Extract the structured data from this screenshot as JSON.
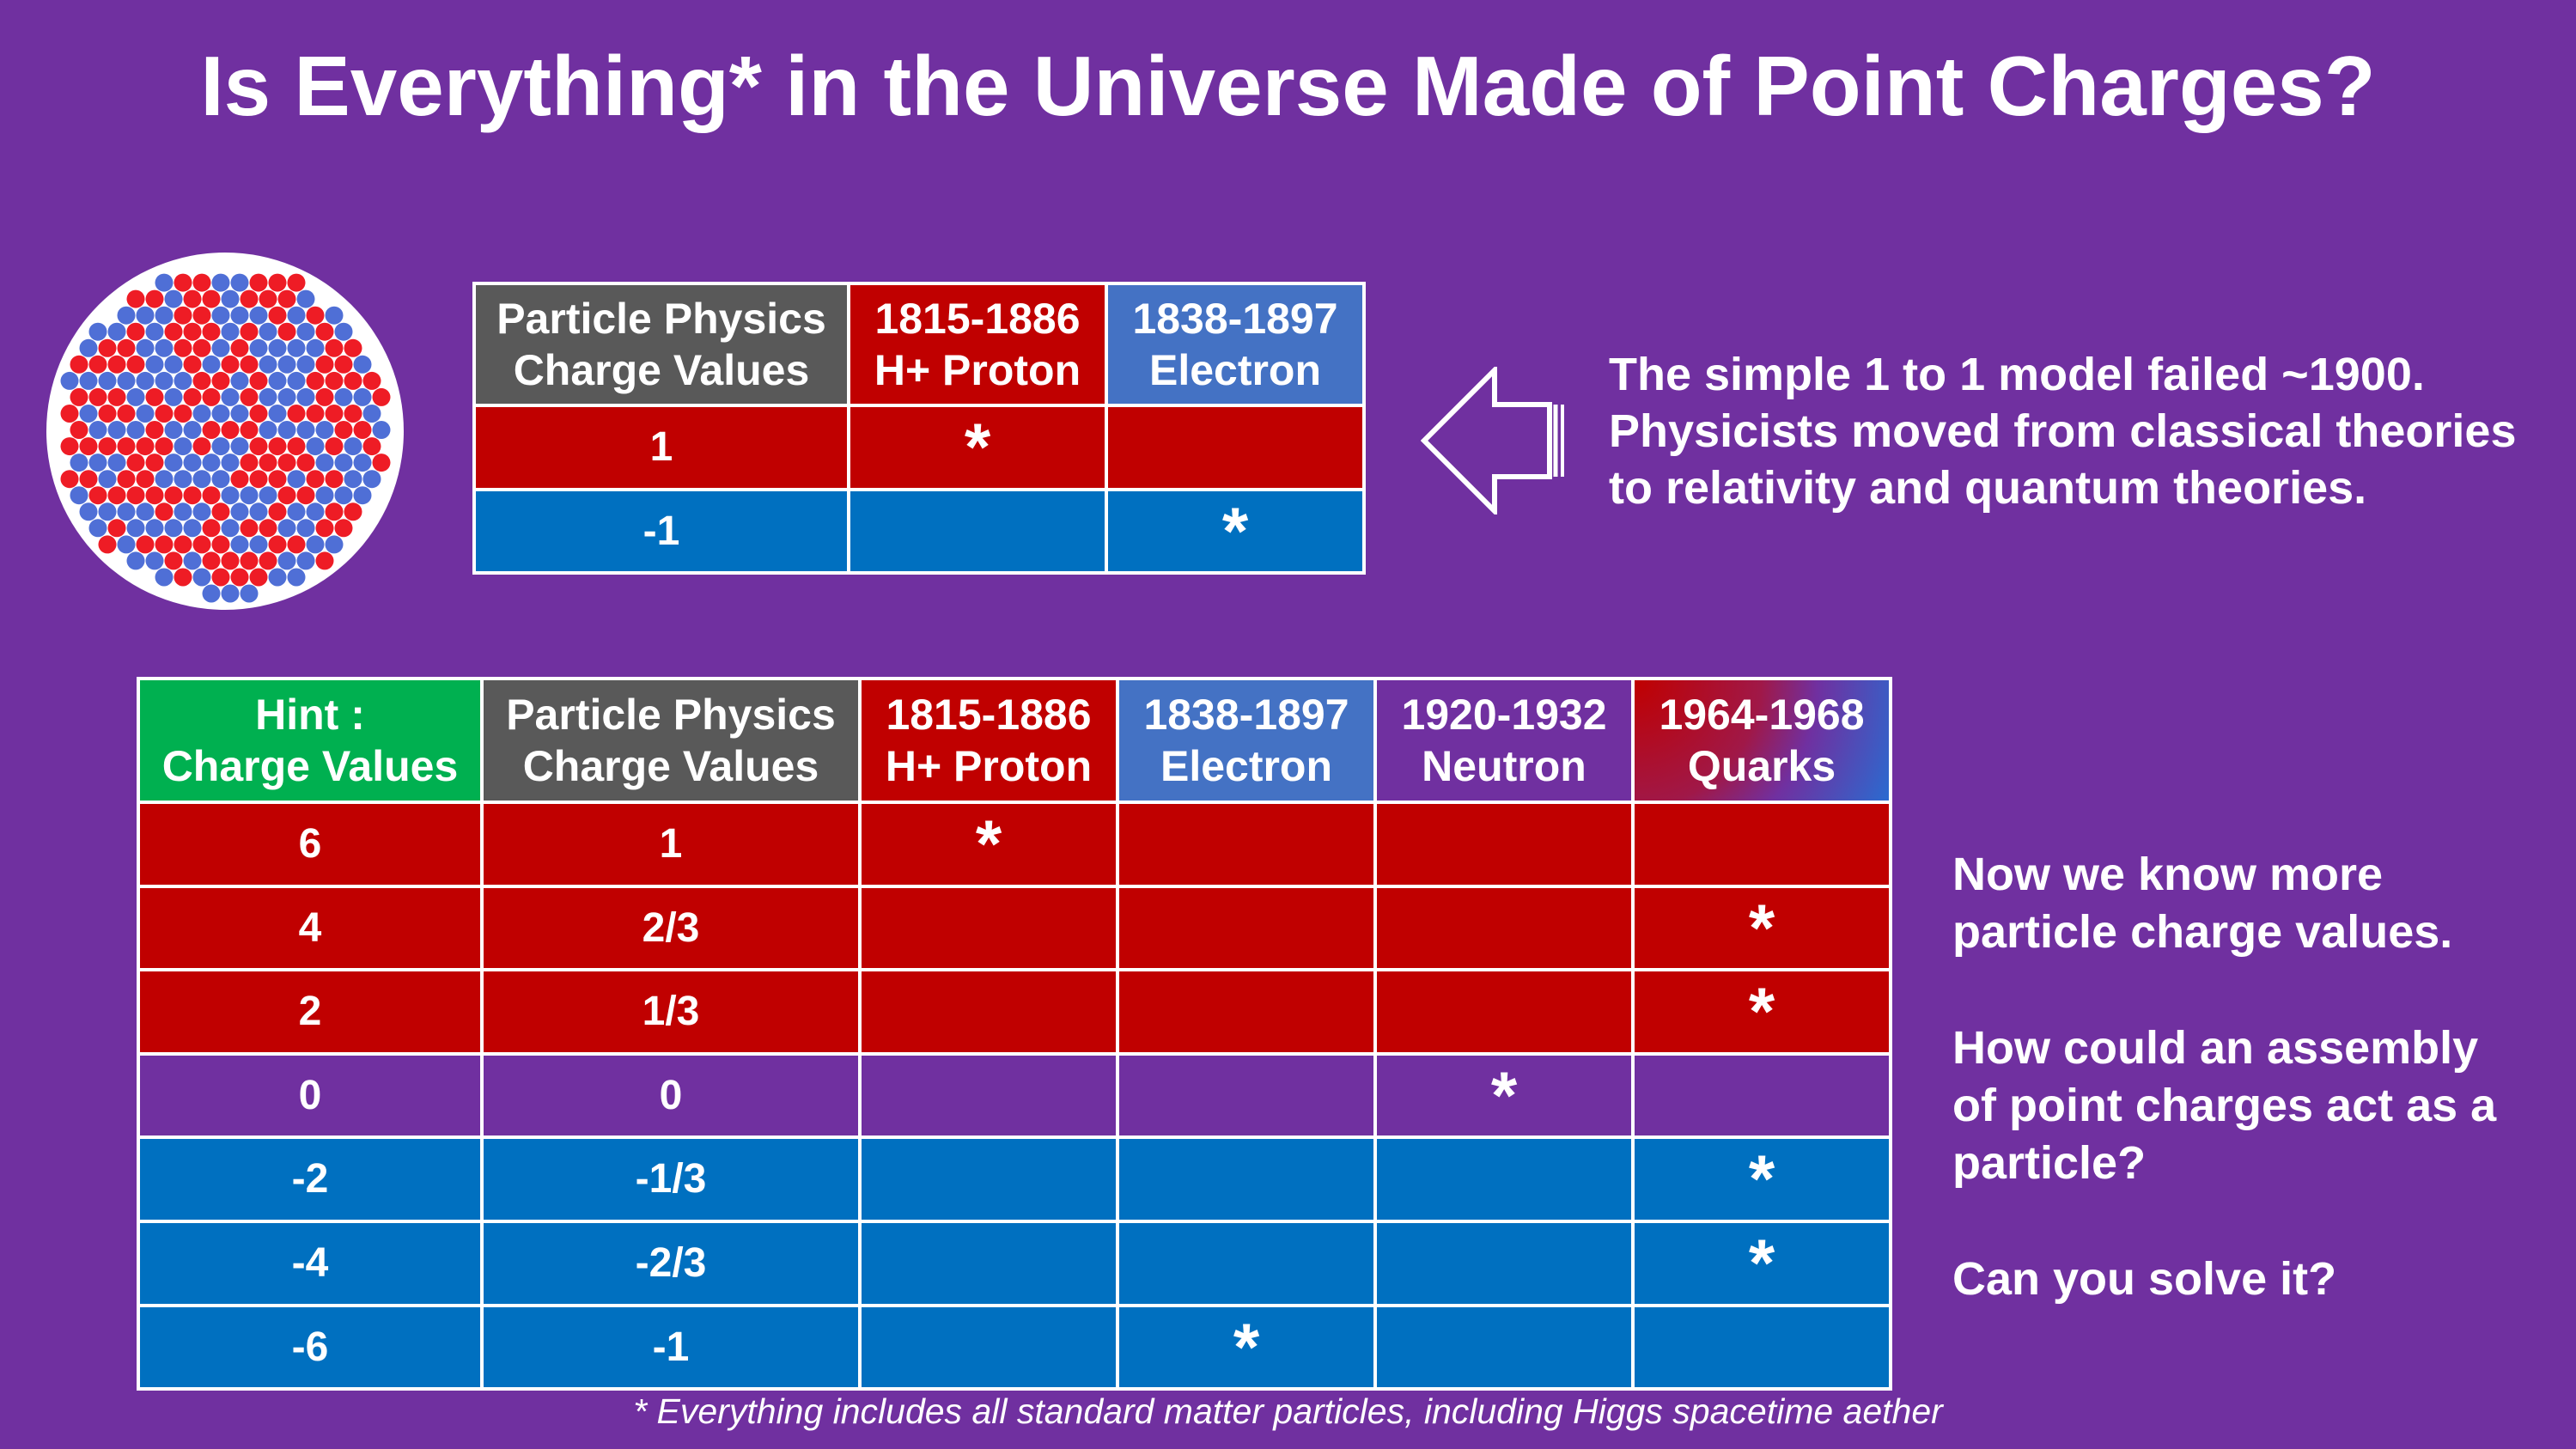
{
  "title": "Is Everything* in the Universe Made of Point Charges?",
  "colors": {
    "background": "#7030a0",
    "red": "#c00000",
    "blue": "#0070c0",
    "header_blue": "#4472c4",
    "header_gray": "#595959",
    "hint_green": "#00b050"
  },
  "nucleus_icon": "nucleus-of-red-and-blue-particles",
  "table1": {
    "headers": [
      [
        "Particle Physics",
        "Charge Values"
      ],
      [
        "1815-1886",
        "H+ Proton"
      ],
      [
        "1838-1897",
        "Electron"
      ]
    ],
    "rows": [
      {
        "color": "red",
        "cells": [
          "1",
          "*",
          ""
        ]
      },
      {
        "color": "blue",
        "cells": [
          "-1",
          "",
          "*"
        ]
      }
    ]
  },
  "arrow_icon": "left-arrow-outline-icon",
  "note_top": [
    "The simple 1 to 1 model failed ~1900.",
    "Physicists moved from classical theories",
    "to relativity and quantum theories."
  ],
  "table2": {
    "headers": [
      [
        "Hint :",
        "Charge Values"
      ],
      [
        "Particle Physics",
        "Charge Values"
      ],
      [
        "1815-1886",
        "H+ Proton"
      ],
      [
        "1838-1897",
        "Electron"
      ],
      [
        "1920-1932",
        "Neutron"
      ],
      [
        "1964-1968",
        "Quarks"
      ]
    ],
    "rows": [
      {
        "color": "red",
        "cells": [
          "6",
          "1",
          "*",
          "",
          "",
          ""
        ]
      },
      {
        "color": "red",
        "cells": [
          "4",
          "2/3",
          "",
          "",
          "",
          "*"
        ]
      },
      {
        "color": "red",
        "cells": [
          "2",
          "1/3",
          "",
          "",
          "",
          "*"
        ]
      },
      {
        "color": "purple",
        "cells": [
          "0",
          "0",
          "",
          "",
          "*",
          ""
        ]
      },
      {
        "color": "blue",
        "cells": [
          "-2",
          "-1/3",
          "",
          "",
          "",
          "*"
        ]
      },
      {
        "color": "blue",
        "cells": [
          "-4",
          "-2/3",
          "",
          "",
          "",
          "*"
        ]
      },
      {
        "color": "blue",
        "cells": [
          "-6",
          "-1",
          "",
          "*",
          "",
          ""
        ]
      }
    ]
  },
  "note_right": [
    [
      "Now we know more",
      "particle charge values."
    ],
    [
      "How could an assembly",
      "of point charges act as a",
      "particle?"
    ],
    [
      "Can you solve it?"
    ]
  ],
  "footnote": "* Everything includes all standard matter particles, including Higgs spacetime aether"
}
